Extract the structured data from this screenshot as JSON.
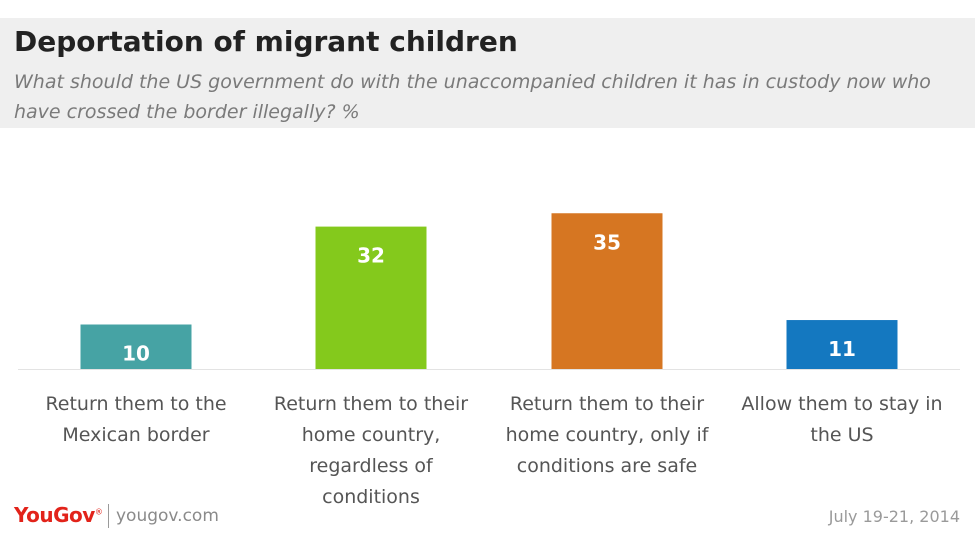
{
  "header": {
    "title": "Deportation of migrant children",
    "subtitle": "What should the US government do with the unaccompanied children it has in custody now who have crossed the border illegally? %"
  },
  "chart_data": {
    "type": "bar",
    "categories": [
      "Return them to the Mexican border",
      "Return them to their home country, regardless of conditions",
      "Return them to their home country, only if conditions are safe",
      "Allow them to stay in the US"
    ],
    "category_lines": [
      [
        "Return them to the",
        "Mexican border"
      ],
      [
        "Return them to their",
        "home country,",
        "regardless of",
        "conditions"
      ],
      [
        "Return them to their",
        "home country, only if",
        "conditions are safe"
      ],
      [
        "Allow them to stay in",
        "the US"
      ]
    ],
    "values": [
      10,
      32,
      35,
      11
    ],
    "colors": [
      "#46a3a4",
      "#84c91c",
      "#d67622",
      "#1478c0"
    ],
    "ylim": [
      0,
      35
    ],
    "grid": false,
    "data_labels": true
  },
  "footer": {
    "logo": "YouGov",
    "site": "yougov.com",
    "date": "July 19-21, 2014"
  }
}
